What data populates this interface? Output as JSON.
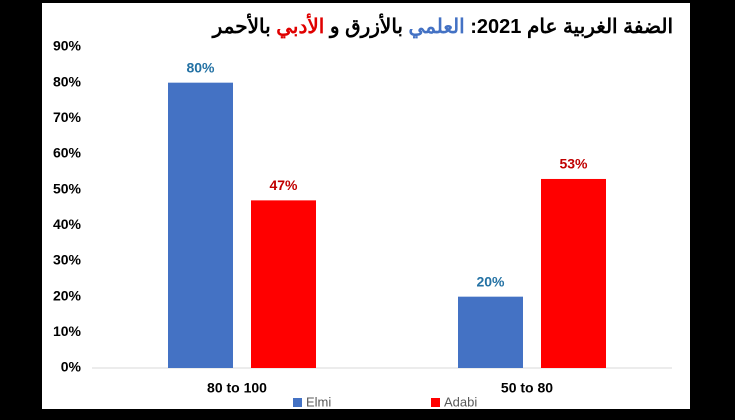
{
  "chart_data": {
    "type": "bar",
    "title_parts": [
      {
        "text": "الضفة الغربية عام 2021: ",
        "color": "#000000"
      },
      {
        "text": "العلمي",
        "color": "#4472c4"
      },
      {
        "text": " بالأزرق و ",
        "color": "#000000"
      },
      {
        "text": "الأدبي",
        "color": "#e00000"
      },
      {
        "text": " بالأحمر",
        "color": "#000000"
      }
    ],
    "categories": [
      "80 to 100",
      "50 to 80"
    ],
    "series": [
      {
        "name": "Elmi",
        "color": "#4472c4",
        "label_color": "#2472a4",
        "values": [
          80,
          20
        ],
        "value_labels": [
          "80%",
          "20%"
        ]
      },
      {
        "name": "Adabi",
        "color": "#ff0000",
        "label_color": "#c00000",
        "values": [
          47,
          53
        ],
        "value_labels": [
          "47%",
          "53%"
        ]
      }
    ],
    "ylim": [
      0,
      90
    ],
    "yticks": [
      {
        "value": 0,
        "label": "0%"
      },
      {
        "value": 10,
        "label": "10%"
      },
      {
        "value": 20,
        "label": "20%"
      },
      {
        "value": 30,
        "label": "30%"
      },
      {
        "value": 40,
        "label": "40%"
      },
      {
        "value": 50,
        "label": "50%"
      },
      {
        "value": 60,
        "label": "60%"
      },
      {
        "value": 70,
        "label": "70%"
      },
      {
        "value": 80,
        "label": "80%"
      },
      {
        "value": 90,
        "label": "90%"
      }
    ],
    "grid": false
  }
}
